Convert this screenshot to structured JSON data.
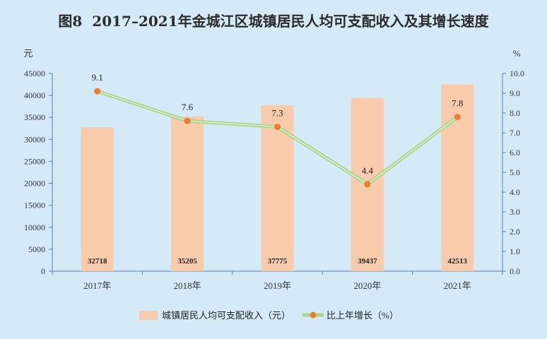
{
  "title": {
    "figure_label": "图8",
    "text": "2017–2021年金城江区城镇居民人均可支配收入及其增长速度"
  },
  "colors": {
    "background": "#d5eaf7",
    "bar": "#f7cbab",
    "line": "#a9d58b",
    "marker": "#ea7d33",
    "axis": "#4f7ea8"
  },
  "chart_data": {
    "type": "bar",
    "categories": [
      "2017年",
      "2018年",
      "2019年",
      "2020年",
      "2021年"
    ],
    "y_left_unit": "元",
    "y_right_unit": "%",
    "y_left_lim": [
      0,
      45000
    ],
    "y_left_ticks": [
      "0",
      "5000",
      "10000",
      "15000",
      "20000",
      "25000",
      "30000",
      "35000",
      "40000",
      "45000"
    ],
    "y_right_lim": [
      0,
      10
    ],
    "y_right_ticks": [
      "0.0",
      "1.0",
      "2.0",
      "3.0",
      "4.0",
      "5.0",
      "6.0",
      "7.0",
      "8.0",
      "9.0",
      "10.0"
    ],
    "grid": false,
    "legend_position": "bottom",
    "series": [
      {
        "name": "城镇居民人均可支配收入（元）",
        "type": "bar",
        "axis": "left",
        "values": [
          32718,
          35205,
          37775,
          39437,
          42513
        ],
        "labels": [
          "32718",
          "35205",
          "37775",
          "39437",
          "42513"
        ]
      },
      {
        "name": "比上年增长（%）",
        "type": "line",
        "axis": "right",
        "values": [
          9.1,
          7.6,
          7.3,
          4.4,
          7.8
        ],
        "labels": [
          "9.1",
          "7.6",
          "7.3",
          "4.4",
          "7.8"
        ]
      }
    ]
  }
}
